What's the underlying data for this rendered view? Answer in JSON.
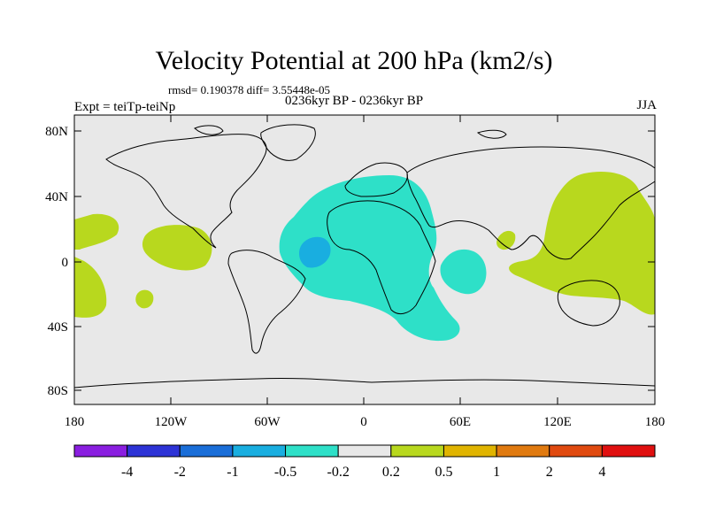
{
  "title": "Velocity Potential at 200 hPa (km2/s)",
  "stats": "rmsd= 0.190378  diff= 3.55448e-05",
  "period": "0236kyr BP - 0236kyr BP",
  "experiment": "Expt = teiTp-teiNp",
  "season": "JJA",
  "y_ticks": [
    "80N",
    "40N",
    "0",
    "40S",
    "80S"
  ],
  "x_ticks": [
    "180",
    "120W",
    "60W",
    "0",
    "60E",
    "120E",
    "180"
  ],
  "colorbar": {
    "labels": [
      "-4",
      "-2",
      "-1",
      "-0.5",
      "-0.2",
      "0.2",
      "0.5",
      "1",
      "2",
      "4"
    ],
    "colors": [
      "#8a1ee0",
      "#2d33d6",
      "#1a6ed8",
      "#19aee0",
      "#2ee0c8",
      "#e8e8e8",
      "#b8d81e",
      "#e0b400",
      "#e07a10",
      "#e04a10",
      "#e01010"
    ]
  },
  "colors": {
    "background": "#e8e8e8",
    "negative_light": "#2ee0c8",
    "negative_mid": "#19aee0",
    "positive_light": "#b8d81e"
  }
}
